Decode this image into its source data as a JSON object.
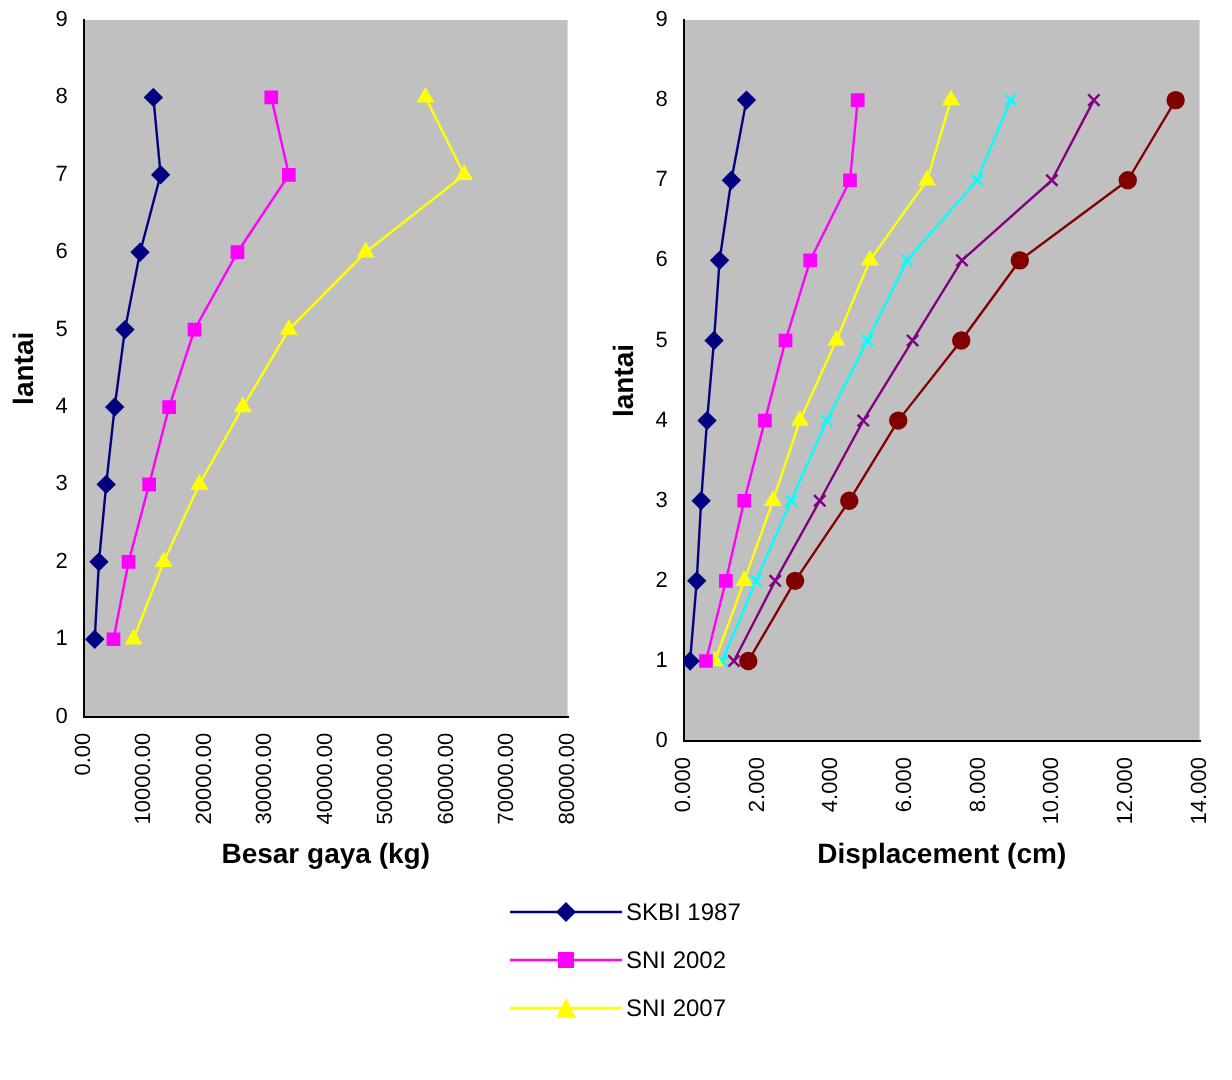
{
  "chart_data": [
    {
      "type": "line",
      "xlabel": "Besar gaya (kg)",
      "ylabel": "lantai",
      "grid": false,
      "legend": "bottom",
      "line_style": "solid",
      "xlim": [
        0,
        80000
      ],
      "xticks": [
        {
          "value": 0,
          "label": "0.00"
        },
        {
          "value": 10000,
          "label": "10000.00"
        },
        {
          "value": 20000,
          "label": "20000.00"
        },
        {
          "value": 30000,
          "label": "30000.00"
        },
        {
          "value": 40000,
          "label": "40000.00"
        },
        {
          "value": 50000,
          "label": "50000.00"
        },
        {
          "value": 60000,
          "label": "60000.00"
        },
        {
          "value": 70000,
          "label": "70000.00"
        },
        {
          "value": 80000,
          "label": "80000.00"
        }
      ],
      "ylim": [
        0,
        9
      ],
      "yticks": [
        0,
        1,
        2,
        3,
        4,
        5,
        6,
        7,
        8,
        9
      ],
      "series": [
        {
          "name": "SKBI 1987",
          "color": "#000080",
          "marker": "diamond",
          "x": [
            1800,
            2500,
            3700,
            5100,
            6800,
            9300,
            12700,
            11500
          ],
          "values": [
            1,
            2,
            3,
            4,
            5,
            6,
            7,
            8
          ]
        },
        {
          "name": "SNI 2002",
          "color": "#ff00ff",
          "marker": "square",
          "x": [
            4900,
            7400,
            10800,
            14100,
            18300,
            25400,
            33900,
            31000
          ],
          "values": [
            1,
            2,
            3,
            4,
            5,
            6,
            7,
            8
          ]
        },
        {
          "name": "SNI 2007",
          "color": "#ffff00",
          "marker": "triangle",
          "x": [
            8200,
            13200,
            19100,
            26300,
            33900,
            46600,
            62900,
            56500
          ],
          "values": [
            1,
            2,
            3,
            4,
            5,
            6,
            7,
            8
          ]
        }
      ]
    },
    {
      "type": "line",
      "xlabel": "Displacement (cm)",
      "ylabel": "lantai",
      "grid": false,
      "line_style": "solid",
      "xlim": [
        0,
        14
      ],
      "xticks": [
        {
          "value": 0,
          "label": "0.000"
        },
        {
          "value": 2,
          "label": "2.000"
        },
        {
          "value": 4,
          "label": "4.000"
        },
        {
          "value": 6,
          "label": "6.000"
        },
        {
          "value": 8,
          "label": "8.000"
        },
        {
          "value": 10,
          "label": "10.000"
        },
        {
          "value": 12,
          "label": "12.000"
        },
        {
          "value": 14,
          "label": "14.000"
        }
      ],
      "ylim": [
        0,
        9
      ],
      "yticks": [
        0,
        1,
        2,
        3,
        4,
        5,
        6,
        7,
        8,
        9
      ],
      "series": [
        {
          "color": "#000080",
          "marker": "diamond",
          "x": [
            0.17,
            0.35,
            0.47,
            0.63,
            0.82,
            0.97,
            1.29,
            1.7
          ],
          "values": [
            1,
            2,
            3,
            4,
            5,
            6,
            7,
            8
          ]
        },
        {
          "color": "#ff00ff",
          "marker": "square",
          "x": [
            0.6,
            1.14,
            1.64,
            2.2,
            2.76,
            3.43,
            4.51,
            4.72
          ],
          "values": [
            1,
            2,
            3,
            4,
            5,
            6,
            7,
            8
          ]
        },
        {
          "color": "#ffff00",
          "marker": "triangle",
          "x": [
            0.84,
            1.64,
            2.42,
            3.15,
            4.14,
            5.05,
            6.6,
            7.25
          ],
          "values": [
            1,
            2,
            3,
            4,
            5,
            6,
            7,
            8
          ]
        },
        {
          "color": "#00ffff",
          "marker": "cross",
          "x": [
            1.04,
            1.96,
            2.91,
            3.88,
            4.98,
            6.06,
            7.96,
            8.87
          ],
          "values": [
            1,
            2,
            3,
            4,
            5,
            6,
            7,
            8
          ]
        },
        {
          "color": "#800080",
          "marker": "cross",
          "x": [
            1.36,
            2.48,
            3.69,
            4.87,
            6.21,
            7.55,
            9.99,
            11.13
          ],
          "values": [
            1,
            2,
            3,
            4,
            5,
            6,
            7,
            8
          ]
        },
        {
          "color": "#800000",
          "marker": "circle",
          "x": [
            1.75,
            3.02,
            4.49,
            5.82,
            7.53,
            9.12,
            12.05,
            13.35
          ],
          "values": [
            1,
            2,
            3,
            4,
            5,
            6,
            7,
            8
          ]
        }
      ]
    }
  ]
}
